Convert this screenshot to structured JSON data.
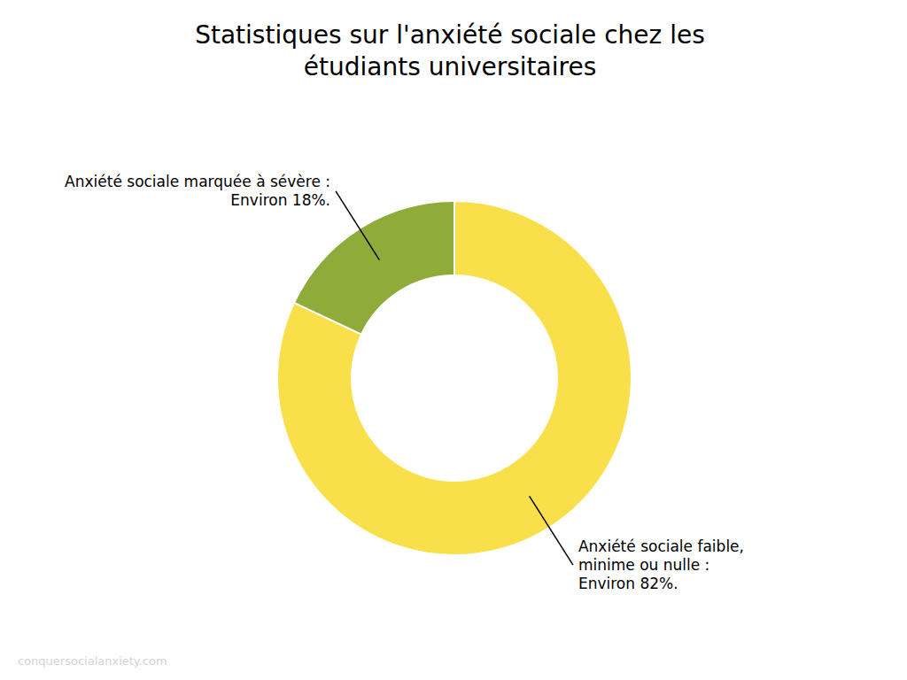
{
  "chart_data": {
    "type": "donut",
    "title": "Statistiques sur l'anxiété sociale chez les\nétudiants universitaires",
    "categories": [
      "Anxiété sociale faible,\nminime ou nulle :\nEnviron 82%.",
      "Anxiété sociale marquée à sévère :\nEnviron 18%."
    ],
    "values": [
      82,
      18
    ],
    "colors": [
      "#f9e04b",
      "#8fac3a"
    ],
    "annotations": [
      "conquersocialanxiety.com"
    ]
  }
}
